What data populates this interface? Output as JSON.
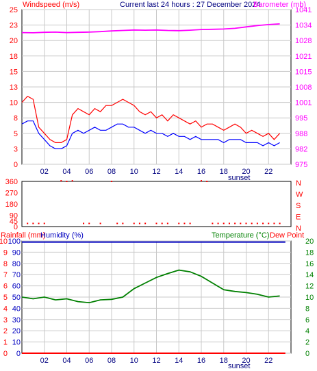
{
  "header": {
    "wind_title": "Windspeed (m/s)",
    "center_title": "Current last 24 hours : 27 December 2024",
    "baro_title": "Barometer (mb)"
  },
  "panel_titles": {
    "rainfall": "Rainfall (mm)",
    "humidity": "Humidity (%)",
    "temperature": "Temperature (°C)",
    "dewpoint": "Dew Point"
  },
  "sunset_label": "sunset",
  "colors": {
    "wind_gust": "#ff0000",
    "wind_avg": "#0000ff",
    "barometer": "#ff00ff",
    "direction": "#ff0000",
    "humidity": "#0000c0",
    "temperature": "#008000",
    "rain": "#ff0000",
    "dewpoint": "#ff0000",
    "grid": "#c8c8c8"
  },
  "chart_data": [
    {
      "type": "line",
      "x_ticks": [
        "02",
        "04",
        "06",
        "08",
        "10",
        "12",
        "14",
        "16",
        "18",
        "20",
        "22"
      ],
      "x_range_hours": [
        0,
        24
      ],
      "grid": true,
      "left_axis": {
        "title": "Windspeed (m/s)",
        "ticks": [
          0,
          3,
          5,
          8,
          10,
          13,
          15,
          18,
          20,
          23,
          25
        ],
        "range": [
          0,
          25
        ]
      },
      "right_axis": {
        "title": "Barometer (mb)",
        "ticks": [
          975,
          982,
          988,
          995,
          1001,
          1008,
          1015,
          1021,
          1028,
          1034,
          1041
        ],
        "range": [
          975,
          1041
        ]
      },
      "series": [
        {
          "key": "gust",
          "axis": "left",
          "x": [
            0,
            0.5,
            1,
            1.5,
            2,
            2.5,
            3,
            3.5,
            4,
            4.5,
            5,
            5.5,
            6,
            6.5,
            7,
            7.5,
            8,
            8.5,
            9,
            9.5,
            10,
            10.5,
            11,
            11.5,
            12,
            12.5,
            13,
            13.5,
            14,
            14.5,
            15,
            15.5,
            16,
            16.5,
            17,
            17.5,
            18,
            18.5,
            19,
            19.5,
            20,
            20.5,
            21,
            21.5,
            22,
            22.5,
            23
          ],
          "values": [
            10,
            11,
            10.5,
            6,
            5,
            4,
            3.5,
            3.5,
            4,
            8,
            9,
            8.5,
            8,
            9,
            8.5,
            9.5,
            9.5,
            10,
            10.5,
            10,
            9.5,
            8.5,
            8,
            8.5,
            7.5,
            8,
            7,
            8,
            7.5,
            7,
            6.5,
            7,
            6,
            6.5,
            6.5,
            6,
            5.5,
            6,
            6.5,
            6,
            5,
            5.5,
            5,
            4.5,
            5,
            4,
            5
          ]
        },
        {
          "key": "average",
          "axis": "left",
          "x": [
            0,
            0.5,
            1,
            1.5,
            2,
            2.5,
            3,
            3.5,
            4,
            4.5,
            5,
            5.5,
            6,
            6.5,
            7,
            7.5,
            8,
            8.5,
            9,
            9.5,
            10,
            10.5,
            11,
            11.5,
            12,
            12.5,
            13,
            13.5,
            14,
            14.5,
            15,
            15.5,
            16,
            16.5,
            17,
            17.5,
            18,
            18.5,
            19,
            19.5,
            20,
            20.5,
            21,
            21.5,
            22,
            22.5,
            23
          ],
          "values": [
            6.5,
            7,
            7,
            5,
            4,
            3,
            2.5,
            2.5,
            3,
            5,
            5.5,
            5,
            5.5,
            6,
            5.5,
            5.5,
            6,
            6.5,
            6.5,
            6,
            6,
            5.5,
            5,
            5.5,
            5,
            5,
            4.5,
            5,
            4.5,
            4.5,
            4,
            4.5,
            4,
            4,
            4,
            4,
            3.5,
            4,
            4,
            4,
            3.5,
            3.5,
            3.5,
            3,
            3.5,
            3,
            3.5
          ]
        },
        {
          "key": "barometer",
          "axis": "right",
          "x": [
            0,
            1,
            2,
            3,
            4,
            5,
            6,
            7,
            8,
            9,
            10,
            11,
            12,
            13,
            14,
            15,
            16,
            17,
            18,
            19,
            20,
            21,
            22,
            23
          ],
          "values": [
            1031.2,
            1031.1,
            1031.3,
            1031.4,
            1031.2,
            1031.3,
            1031.4,
            1031.6,
            1031.9,
            1032.1,
            1032.3,
            1032.2,
            1032.3,
            1032.1,
            1032.0,
            1032.2,
            1032.5,
            1032.6,
            1032.7,
            1033.0,
            1033.6,
            1034.2,
            1034.6,
            1034.9
          ]
        }
      ]
    },
    {
      "type": "scatter",
      "y_axis": {
        "ticks": [
          0,
          45,
          90,
          180,
          270,
          360
        ],
        "range": [
          0,
          360
        ]
      },
      "right_labels": [
        "N",
        "W",
        "S",
        "E",
        "N"
      ],
      "series": [
        {
          "key": "wind_direction",
          "x": [
            0.5,
            1,
            1.5,
            2,
            3.5,
            4,
            4.5,
            5.5,
            6,
            7,
            8,
            8.5,
            9,
            10,
            10.5,
            11,
            12,
            12.5,
            13,
            14,
            14.5,
            15,
            16,
            16.5,
            17,
            17.5,
            18,
            18.5,
            19,
            19.5,
            20,
            20.5,
            21,
            21.5,
            22,
            22.5,
            23
          ],
          "values": [
            25,
            25,
            25,
            25,
            365,
            360,
            365,
            25,
            25,
            25,
            360,
            25,
            25,
            25,
            25,
            25,
            25,
            25,
            25,
            25,
            25,
            25,
            365,
            360,
            25,
            25,
            25,
            25,
            25,
            25,
            25,
            25,
            25,
            25,
            25,
            25,
            25
          ]
        }
      ]
    },
    {
      "type": "line",
      "x_ticks": [
        "02",
        "04",
        "06",
        "08",
        "10",
        "12",
        "14",
        "16",
        "18",
        "20",
        "22"
      ],
      "x_range_hours": [
        0,
        24
      ],
      "grid": true,
      "left_axis_rain": {
        "title": "Rainfall (mm)",
        "ticks": [
          0,
          1,
          2,
          3,
          4,
          5,
          6,
          7,
          8,
          9,
          10
        ],
        "range": [
          0,
          10
        ]
      },
      "left_axis_humidity": {
        "title": "Humidity (%)",
        "ticks": [
          0,
          10,
          20,
          30,
          40,
          50,
          60,
          70,
          80,
          90,
          100
        ],
        "range": [
          0,
          100
        ]
      },
      "right_axis": {
        "title": "Temperature (°C)",
        "ticks": [
          0,
          2,
          4,
          6,
          8,
          10,
          12,
          14,
          16,
          18,
          20
        ],
        "range": [
          0,
          20
        ]
      },
      "series": [
        {
          "key": "temperature",
          "axis": "right",
          "x": [
            0,
            1,
            2,
            3,
            4,
            5,
            6,
            7,
            8,
            9,
            10,
            11,
            12,
            13,
            14,
            15,
            16,
            17,
            18,
            19,
            20,
            21,
            22,
            23
          ],
          "values": [
            10.0,
            9.7,
            10.0,
            9.5,
            9.7,
            9.2,
            9.0,
            9.5,
            9.6,
            10.0,
            11.5,
            12.5,
            13.5,
            14.2,
            14.8,
            14.5,
            13.7,
            12.5,
            11.3,
            11.0,
            10.8,
            10.5,
            10.0,
            10.2
          ]
        },
        {
          "key": "humidity",
          "axis": "left",
          "x": [
            0,
            23.5
          ],
          "values": [
            99,
            99
          ]
        },
        {
          "key": "rainfall",
          "axis": "left",
          "x": [
            0,
            23.5
          ],
          "values": [
            0,
            0
          ]
        }
      ]
    }
  ]
}
